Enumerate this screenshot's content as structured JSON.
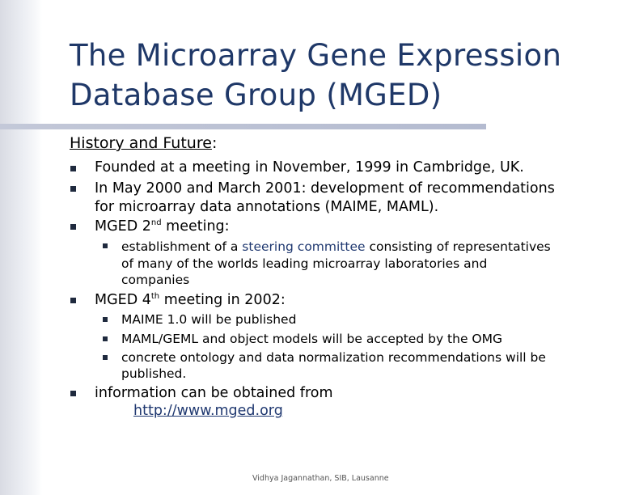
{
  "slide": {
    "title_line1": "The Microarray Gene Expression",
    "title_line2": "Database Group (MGED)",
    "subheading": "History and Future",
    "subheading_colon": ":",
    "bullets": [
      "Founded at a meeting in November, 1999 in Cambridge, UK.",
      "In May 2000 and March 2001: development of recommendations",
      "for microarray data annotations (MAIME, MAML).",
      "MGED 2",
      "nd",
      " meeting:",
      "MGED 4",
      "th",
      " meeting in 2002:",
      "information can be obtained from",
      "http://www.mged.org"
    ],
    "sub_bullets": [
      "establishment of a ",
      "steering committee",
      " consisting of representatives",
      "of many of the worlds leading microarray laboratories and",
      "companies",
      "MAIME 1.0 will be published",
      "MAML/GEML and object models will be accepted by the OMG",
      "concrete ontology and data normalization recommendations will be",
      "published."
    ],
    "footer": "Vidhya Jagannathan, SIB, Lausanne"
  },
  "colors": {
    "title": "#1f3868",
    "link": "#1f3870",
    "bullet": "#1f2a3e"
  }
}
